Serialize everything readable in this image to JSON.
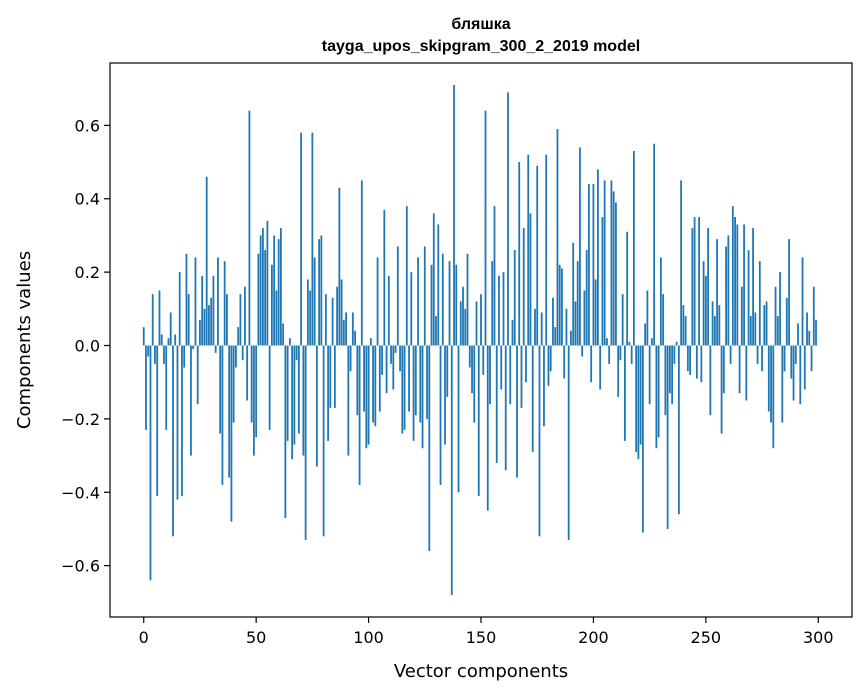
{
  "chart_data": {
    "type": "bar",
    "title": "бляшка",
    "subtitle": "tayga_upos_skipgram_300_2_2019 model",
    "xlabel": "Vector components",
    "ylabel": "Components values",
    "xlim": [
      -15,
      315
    ],
    "ylim": [
      -0.74,
      0.77
    ],
    "xticks": [
      0,
      50,
      100,
      150,
      200,
      250,
      300
    ],
    "xtick_labels": [
      "0",
      "50",
      "100",
      "150",
      "200",
      "250",
      "300"
    ],
    "yticks": [
      -0.6,
      -0.4,
      -0.2,
      0.0,
      0.2,
      0.4,
      0.6
    ],
    "ytick_labels": [
      "−0.6",
      "−0.4",
      "−0.2",
      "0.0",
      "0.2",
      "0.4",
      "0.6"
    ],
    "grid": false,
    "bar_color": "#1f77b4",
    "x": "0..299",
    "values": [
      0.05,
      -0.23,
      -0.03,
      -0.64,
      0.14,
      -0.05,
      -0.41,
      0.15,
      0.03,
      -0.05,
      -0.23,
      0.02,
      0.09,
      -0.52,
      0.03,
      -0.42,
      0.2,
      -0.41,
      -0.06,
      0.25,
      0.14,
      -0.3,
      -0.01,
      0.24,
      -0.16,
      0.07,
      0.19,
      0.1,
      0.46,
      0.11,
      0.13,
      0.19,
      -0.02,
      0.24,
      -0.24,
      -0.38,
      0.23,
      0.14,
      -0.36,
      -0.48,
      -0.21,
      -0.06,
      0.05,
      0.14,
      -0.04,
      0.16,
      -0.15,
      0.64,
      -0.21,
      -0.3,
      -0.25,
      0.25,
      0.3,
      0.32,
      0.26,
      0.34,
      -0.23,
      0.22,
      0.3,
      0.15,
      0.29,
      0.32,
      0.06,
      -0.47,
      -0.26,
      0.02,
      -0.31,
      -0.27,
      -0.04,
      -0.24,
      0.58,
      -0.3,
      -0.53,
      0.18,
      0.15,
      0.58,
      0.24,
      -0.33,
      0.29,
      0.3,
      -0.52,
      0.14,
      -0.26,
      -0.17,
      0.13,
      -0.17,
      0.16,
      0.43,
      0.18,
      0.07,
      0.09,
      -0.3,
      -0.07,
      0.09,
      0.04,
      -0.19,
      -0.38,
      0.45,
      -0.18,
      -0.28,
      -0.27,
      0.02,
      -0.21,
      -0.22,
      0.24,
      -0.18,
      -0.08,
      0.37,
      -0.13,
      0.19,
      -0.05,
      -0.12,
      -0.02,
      0.27,
      -0.07,
      -0.24,
      -0.23,
      0.38,
      -0.18,
      0.2,
      -0.26,
      -0.19,
      0.24,
      -0.21,
      -0.28,
      0.27,
      -0.2,
      -0.56,
      0.22,
      0.36,
      0.08,
      0.33,
      -0.38,
      0.25,
      -0.27,
      -0.14,
      0.23,
      -0.68,
      0.71,
      0.22,
      -0.4,
      0.12,
      0.16,
      0.1,
      0.25,
      -0.06,
      -0.13,
      -0.21,
      0.12,
      -0.41,
      0.14,
      -0.08,
      0.64,
      -0.45,
      -0.16,
      0.23,
      0.38,
      -0.32,
      0.19,
      -0.12,
      0.2,
      -0.34,
      0.69,
      -0.16,
      0.07,
      0.26,
      -0.36,
      0.5,
      -0.17,
      0.32,
      -0.1,
      0.52,
      0.36,
      -0.29,
      0.1,
      0.49,
      -0.52,
      0.09,
      -0.22,
      0.52,
      -0.11,
      -0.07,
      0.13,
      0.05,
      0.59,
      0.22,
      0.21,
      -0.09,
      0.1,
      -0.53,
      0.04,
      0.28,
      0.12,
      0.23,
      0.54,
      -0.03,
      0.15,
      0.26,
      0.44,
      -0.1,
      0.44,
      0.18,
      0.48,
      -0.12,
      0.35,
      0.45,
      0.02,
      -0.05,
      0.45,
      0.42,
      0.39,
      -0.14,
      -0.04,
      0.14,
      -0.26,
      0.31,
      0.01,
      -0.05,
      0.53,
      -0.29,
      -0.31,
      -0.27,
      -0.51,
      0.06,
      0.15,
      -0.16,
      0.02,
      0.55,
      -0.28,
      -0.25,
      0.24,
      0.14,
      -0.19,
      -0.5,
      -0.13,
      -0.16,
      -0.05,
      0.01,
      -0.46,
      0.45,
      0.11,
      0.08,
      -0.07,
      -0.08,
      0.32,
      0.35,
      -0.09,
      0.35,
      -0.1,
      0.23,
      0.19,
      0.32,
      -0.19,
      0.12,
      0.08,
      0.29,
      0.11,
      -0.24,
      -0.13,
      0.27,
      0.3,
      -0.05,
      0.38,
      0.35,
      0.33,
      -0.13,
      0.16,
      0.33,
      -0.15,
      0.26,
      0.08,
      0.32,
      0.09,
      -0.05,
      0.23,
      -0.07,
      0.11,
      0.12,
      -0.18,
      -0.21,
      -0.28,
      0.16,
      0.08,
      0.2,
      -0.21,
      -0.07,
      0.13,
      0.29,
      -0.09,
      -0.15,
      -0.05,
      0.06,
      -0.16,
      0.24,
      -0.12,
      0.09,
      0.04,
      -0.07,
      0.16,
      0.07
    ]
  }
}
